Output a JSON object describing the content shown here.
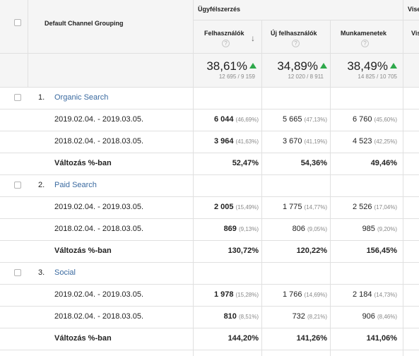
{
  "header": {
    "dimension_label": "Default Channel Grouping",
    "group_acquisition": "Ügyfélszerzés",
    "group_behavior": "Vise",
    "columns": [
      {
        "label": "Felhasználók",
        "total_pct": "38,61%",
        "total_sub": "12 695 / 9 159"
      },
      {
        "label": "Új felhasználók",
        "total_pct": "34,89%",
        "total_sub": "12 020 / 8 911"
      },
      {
        "label": "Munkamenetek",
        "total_pct": "38,49%",
        "total_sub": "14 825 / 10 705"
      },
      {
        "label": "Vis"
      }
    ],
    "help_glyph": "?"
  },
  "rows": [
    {
      "index": "1.",
      "channel": "Organic Search",
      "periods": [
        {
          "label": "2019.02.04. - 2019.03.05.",
          "cells": [
            {
              "v": "6 044",
              "p": "(46,69%)"
            },
            {
              "v": "5 665",
              "p": "(47,13%)"
            },
            {
              "v": "6 760",
              "p": "(45,60%)"
            }
          ]
        },
        {
          "label": "2018.02.04. - 2018.03.05.",
          "cells": [
            {
              "v": "3 964",
              "p": "(41,63%)"
            },
            {
              "v": "3 670",
              "p": "(41,19%)"
            },
            {
              "v": "4 523",
              "p": "(42,25%)"
            }
          ]
        }
      ],
      "change_label": "Változás %-ban",
      "change": [
        "52,47%",
        "54,36%",
        "49,46%"
      ]
    },
    {
      "index": "2.",
      "channel": "Paid Search",
      "periods": [
        {
          "label": "2019.02.04. - 2019.03.05.",
          "cells": [
            {
              "v": "2 005",
              "p": "(15,49%)"
            },
            {
              "v": "1 775",
              "p": "(14,77%)"
            },
            {
              "v": "2 526",
              "p": "(17,04%)"
            }
          ]
        },
        {
          "label": "2018.02.04. - 2018.03.05.",
          "cells": [
            {
              "v": "869",
              "p": "(9,13%)"
            },
            {
              "v": "806",
              "p": "(9,05%)"
            },
            {
              "v": "985",
              "p": "(9,20%)"
            }
          ]
        }
      ],
      "change_label": "Változás %-ban",
      "change": [
        "130,72%",
        "120,22%",
        "156,45%"
      ]
    },
    {
      "index": "3.",
      "channel": "Social",
      "periods": [
        {
          "label": "2019.02.04. - 2019.03.05.",
          "cells": [
            {
              "v": "1 978",
              "p": "(15,28%)"
            },
            {
              "v": "1 766",
              "p": "(14,69%)"
            },
            {
              "v": "2 184",
              "p": "(14,73%)"
            }
          ]
        },
        {
          "label": "2018.02.04. - 2018.03.05.",
          "cells": [
            {
              "v": "810",
              "p": "(8,51%)"
            },
            {
              "v": "732",
              "p": "(8,21%)"
            },
            {
              "v": "906",
              "p": "(8,46%)"
            }
          ]
        }
      ],
      "change_label": "Változás %-ban",
      "change": [
        "144,20%",
        "141,26%",
        "141,06%"
      ]
    }
  ],
  "colors": {
    "accent_link": "#3a6aa0",
    "up_arrow": "#2ea84a",
    "grid": "#e0e0e0"
  }
}
